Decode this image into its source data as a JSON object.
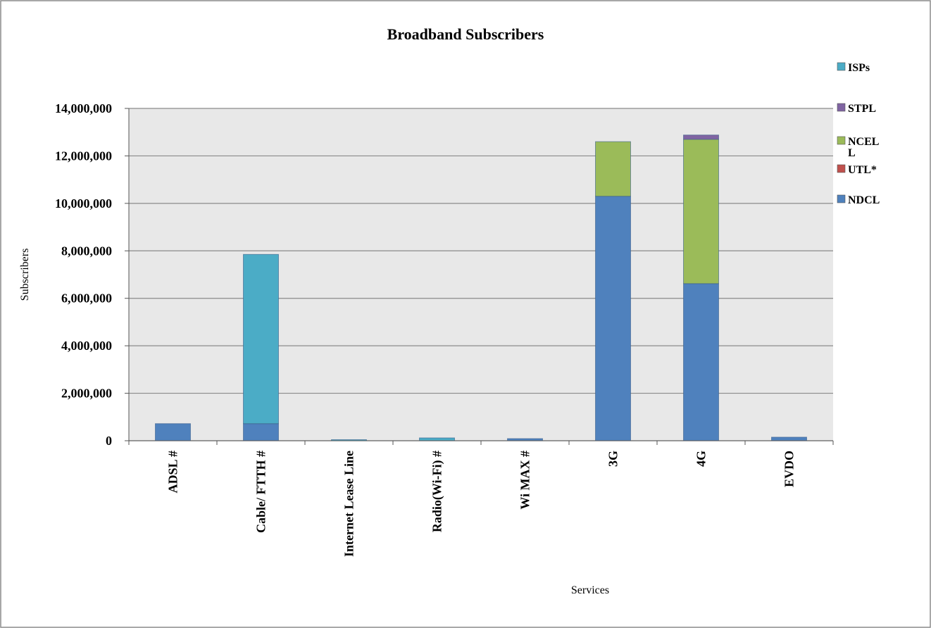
{
  "chart_data": {
    "type": "bar",
    "stacked": true,
    "title": "Broadband Subscribers",
    "xlabel": "Services",
    "ylabel": "Subscribers",
    "ylim": [
      0,
      14000000
    ],
    "yticks": [
      0,
      2000000,
      4000000,
      6000000,
      8000000,
      10000000,
      12000000,
      14000000
    ],
    "ytick_labels": [
      "0",
      "2,000,000",
      "4,000,000",
      "6,000,000",
      "8,000,000",
      "10,000,000",
      "12,000,000",
      "14,000,000"
    ],
    "grid": true,
    "legend_position": "right",
    "categories": [
      "ADSL #",
      "Cable/ FTTH #",
      "Internet Lease Line",
      "Radio(Wi-Fi) #",
      "Wi MAX #",
      "3G",
      "4G",
      "EVDO"
    ],
    "series": [
      {
        "name": "NDCL",
        "color": "#4f81bd",
        "values": [
          720000,
          720000,
          0,
          0,
          90000,
          10300000,
          6620000,
          150000
        ]
      },
      {
        "name": "UTL*",
        "color": "#c0504d",
        "values": [
          0,
          0,
          0,
          0,
          0,
          0,
          0,
          0
        ]
      },
      {
        "name": "NCELL",
        "color": "#9bbb59",
        "values": [
          0,
          0,
          0,
          0,
          0,
          2300000,
          6080000,
          0
        ]
      },
      {
        "name": "STPL",
        "color": "#8064a2",
        "values": [
          0,
          0,
          0,
          0,
          0,
          0,
          180000,
          0
        ]
      },
      {
        "name": "ISPs",
        "color": "#4bacc6",
        "values": [
          0,
          7130000,
          20000,
          120000,
          0,
          0,
          0,
          0
        ]
      }
    ],
    "legend_order": [
      "ISPs",
      "STPL",
      "NCELL",
      "UTL*",
      "NDCL"
    ],
    "plot_background": "#e8e8e8"
  }
}
